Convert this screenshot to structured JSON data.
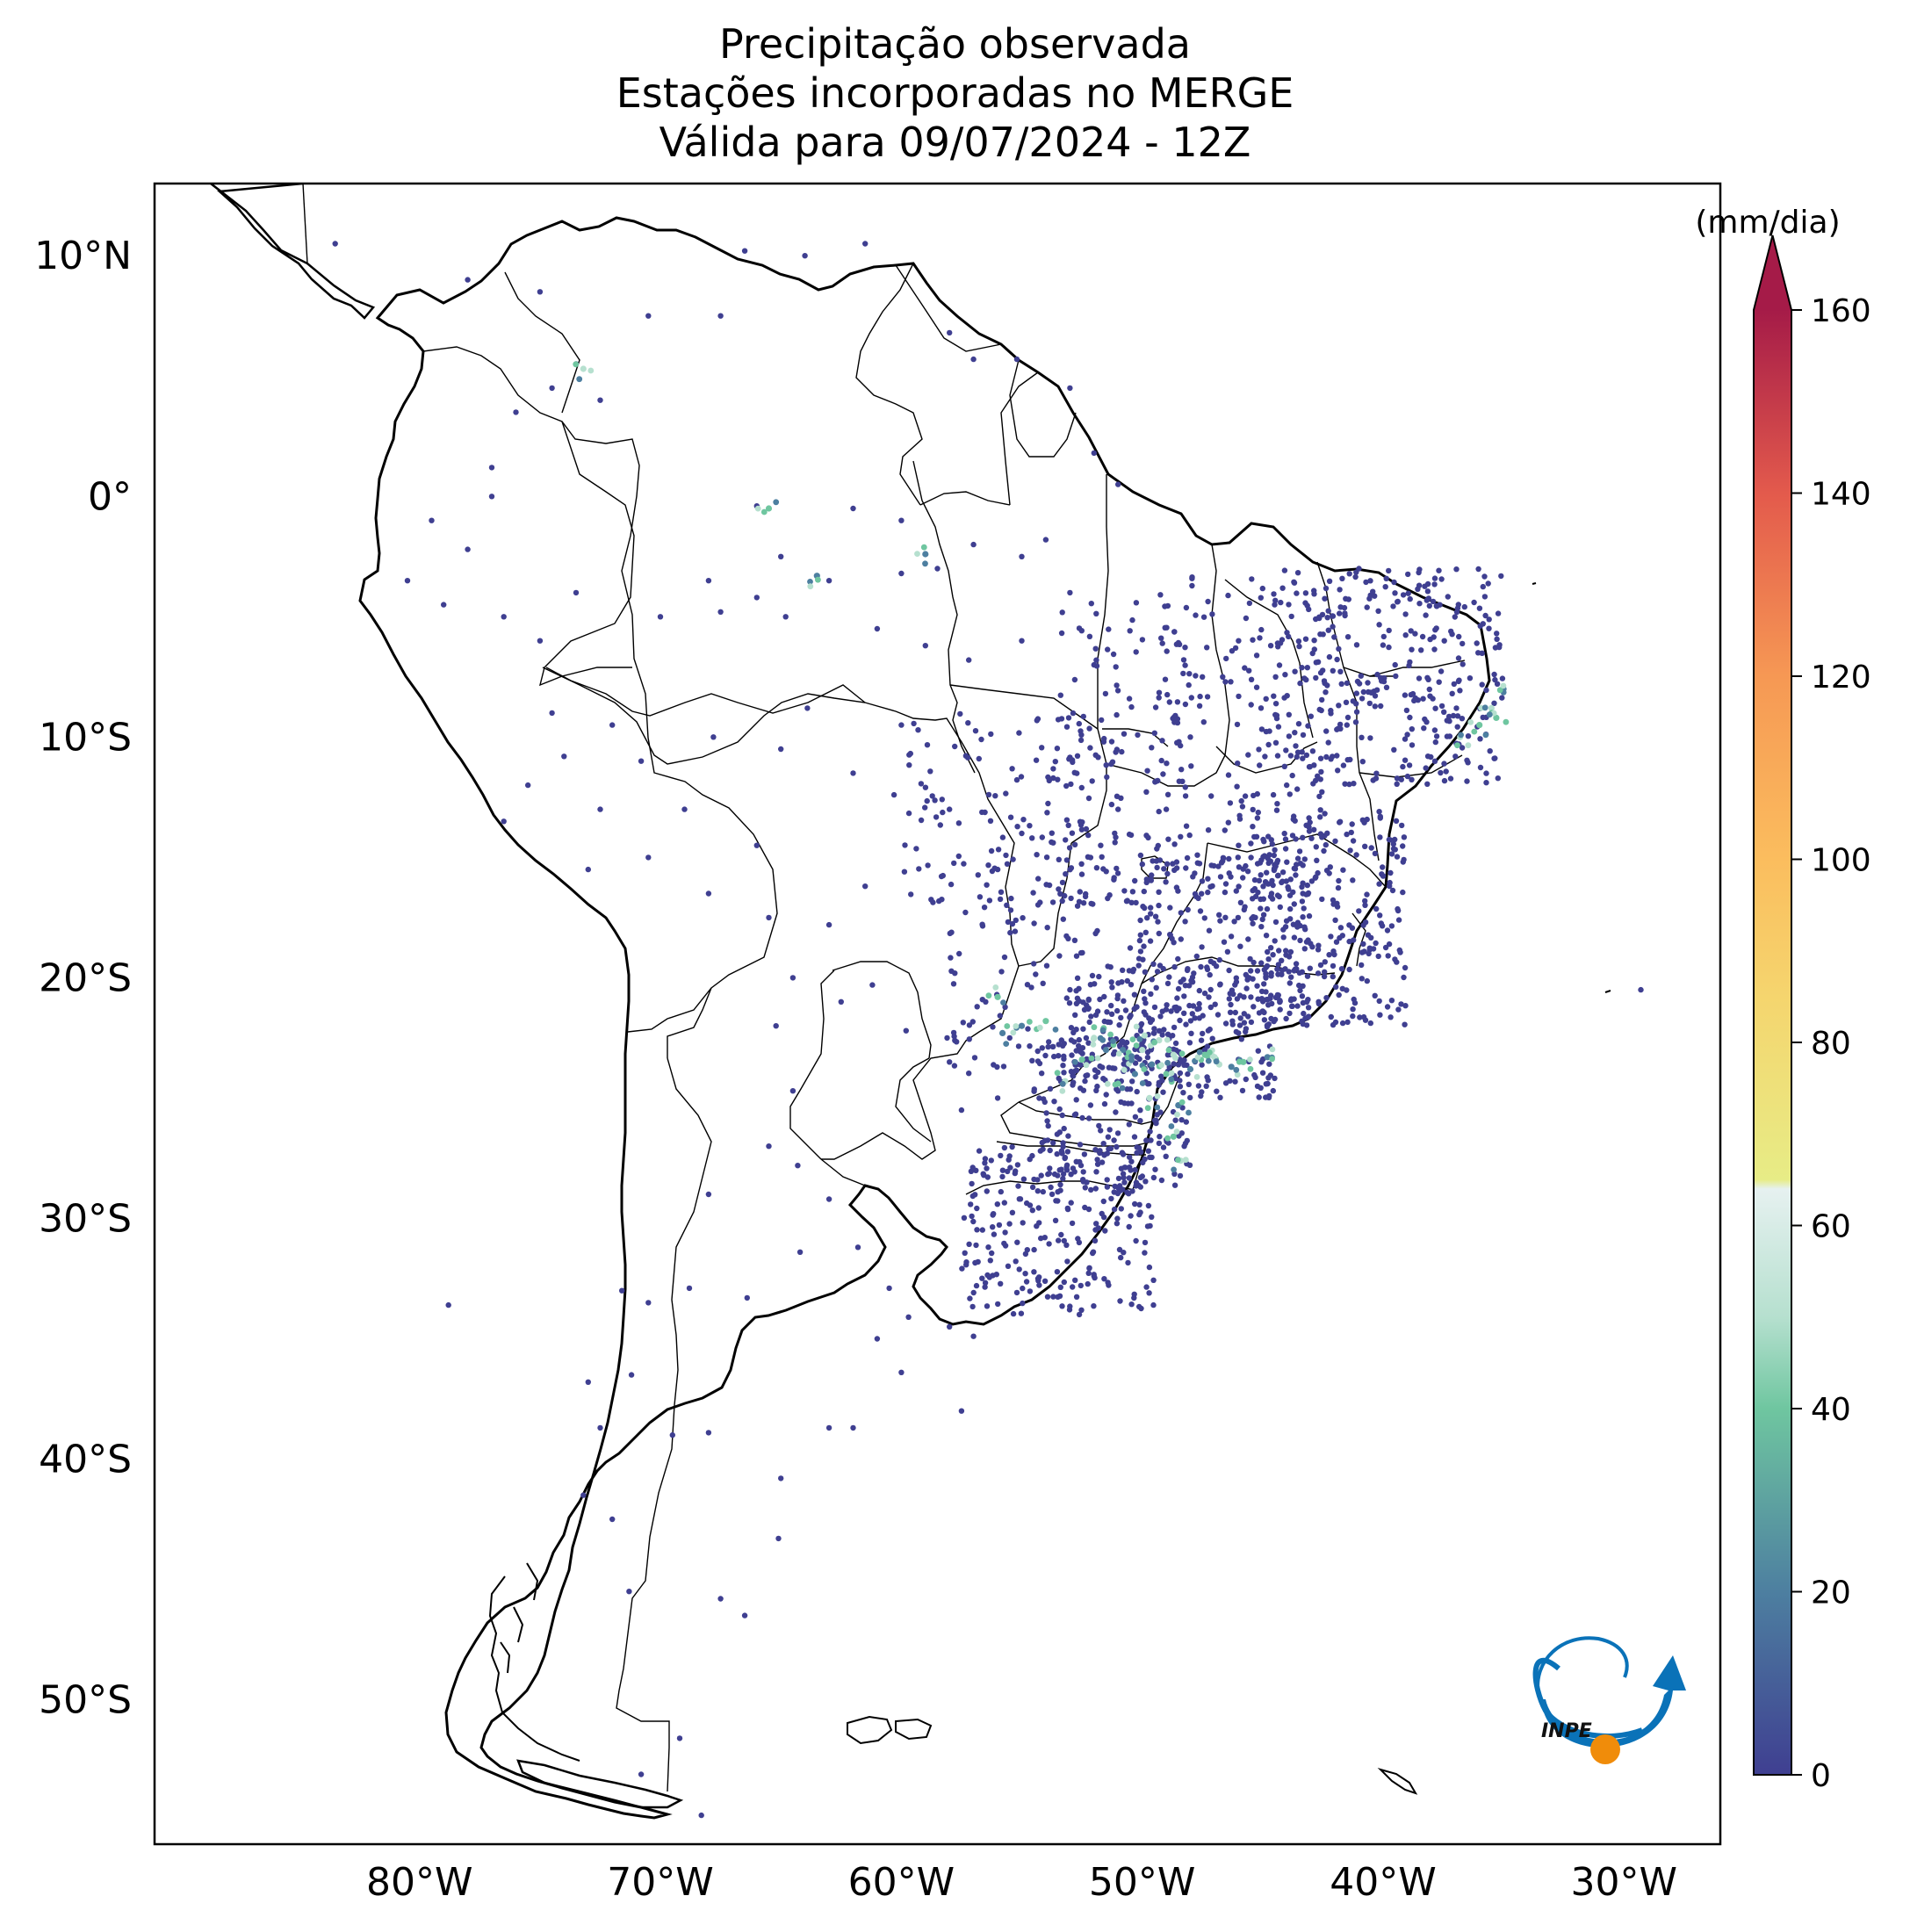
{
  "title": {
    "line1": "Precipitação observada",
    "line2": "Estações incorporadas no MERGE",
    "line3": "Válida para 09/07/2024 - 12Z"
  },
  "map": {
    "extent": {
      "lon_min": -91,
      "lon_max": -26,
      "lat_min": -56,
      "lat_max": 13
    },
    "lat_labels": [
      {
        "lat": 10,
        "text": "10°N"
      },
      {
        "lat": 0,
        "text": "0°"
      },
      {
        "lat": -10,
        "text": "10°S"
      },
      {
        "lat": -20,
        "text": "20°S"
      },
      {
        "lat": -30,
        "text": "30°S"
      },
      {
        "lat": -40,
        "text": "40°S"
      },
      {
        "lat": -50,
        "text": "50°S"
      }
    ],
    "lon_labels": [
      {
        "lon": -80,
        "text": "80°W"
      },
      {
        "lon": -70,
        "text": "70°W"
      },
      {
        "lon": -60,
        "text": "60°W"
      },
      {
        "lon": -50,
        "text": "50°W"
      },
      {
        "lon": -40,
        "text": "40°W"
      },
      {
        "lon": -30,
        "text": "30°W"
      }
    ]
  },
  "colorbar": {
    "unit": "(mm/dia)",
    "min": 0,
    "max": 160,
    "ticks": [
      "0",
      "20",
      "40",
      "60",
      "80",
      "100",
      "120",
      "140",
      "160"
    ],
    "colors": [
      {
        "v": 0,
        "c": "#3f3f91"
      },
      {
        "v": 20,
        "c": "#4d7fa0"
      },
      {
        "v": 40,
        "c": "#6fc6a0"
      },
      {
        "v": 50,
        "c": "#b6e0cf"
      },
      {
        "v": 64,
        "c": "#e6f1f0"
      },
      {
        "v": 65,
        "c": "#e7ec86"
      },
      {
        "v": 85,
        "c": "#f5d56e"
      },
      {
        "v": 100,
        "c": "#fbbd5e"
      },
      {
        "v": 120,
        "c": "#f69854"
      },
      {
        "v": 140,
        "c": "#e35a4c"
      },
      {
        "v": 160,
        "c": "#a51b48"
      }
    ]
  },
  "logo": {
    "text": "INPE"
  },
  "chart_data": {
    "type": "scatter",
    "stations_sparse": [
      [
        -83.5,
        10.5
      ],
      [
        -78,
        9
      ],
      [
        -75,
        8.5
      ],
      [
        -73.5,
        5.5
      ],
      [
        -74.5,
        4.5
      ],
      [
        -72.5,
        4
      ],
      [
        -76,
        3.5
      ],
      [
        -70.5,
        7.5
      ],
      [
        -67.5,
        7.5
      ],
      [
        -66.5,
        10.2
      ],
      [
        -64,
        10
      ],
      [
        -61.5,
        10.5
      ],
      [
        -58,
        6.8
      ],
      [
        -57,
        5.7
      ],
      [
        -55.2,
        5.7
      ],
      [
        -53,
        4.5
      ],
      [
        -52,
        1.8
      ],
      [
        -51,
        0.5
      ],
      [
        -77,
        1.2
      ],
      [
        -79.5,
        -1
      ],
      [
        -78,
        -2.2
      ],
      [
        -77,
        0
      ],
      [
        -80.5,
        -3.5
      ],
      [
        -79,
        -4.5
      ],
      [
        -76.5,
        -5
      ],
      [
        -75,
        -6
      ],
      [
        -73.5,
        -4
      ],
      [
        -70,
        -5
      ],
      [
        -68,
        -3.5
      ],
      [
        -65,
        -2.5
      ],
      [
        -63,
        -3.5
      ],
      [
        -60,
        -3.2
      ],
      [
        -58.5,
        -3
      ],
      [
        -57,
        -2
      ],
      [
        -55,
        -2.5
      ],
      [
        -54,
        -1.8
      ],
      [
        -53,
        -4
      ],
      [
        -60,
        -1
      ],
      [
        -62,
        -0.5
      ],
      [
        -66,
        -0.4
      ],
      [
        -67.5,
        -4.8
      ],
      [
        -66,
        -4.2
      ],
      [
        -64.8,
        -5
      ],
      [
        -61,
        -5.5
      ],
      [
        -59,
        -6.2
      ],
      [
        -57.2,
        -6.8
      ],
      [
        -55,
        -6
      ],
      [
        -52,
        -7
      ],
      [
        -74.5,
        -9
      ],
      [
        -75.5,
        -12
      ],
      [
        -76.5,
        -13.5
      ],
      [
        -72.5,
        -13
      ],
      [
        -73,
        -15.5
      ],
      [
        -70.5,
        -15
      ],
      [
        -68,
        -16.5
      ],
      [
        -66,
        -14.5
      ],
      [
        -65.5,
        -17.5
      ],
      [
        -63,
        -17.8
      ],
      [
        -61.5,
        -16.2
      ],
      [
        -64.5,
        -20
      ],
      [
        -65.2,
        -22
      ],
      [
        -62.5,
        -21
      ],
      [
        -59.8,
        -22.2
      ],
      [
        -58,
        -23.5
      ],
      [
        -56,
        -25
      ],
      [
        -57.5,
        -25.5
      ],
      [
        -64.5,
        -24.7
      ],
      [
        -65.5,
        -27
      ],
      [
        -68,
        -29
      ],
      [
        -64.3,
        -27.8
      ],
      [
        -63,
        -29.2
      ],
      [
        -61.8,
        -31.2
      ],
      [
        -60.5,
        -32.9
      ],
      [
        -64.2,
        -31.4
      ],
      [
        -66.4,
        -33.3
      ],
      [
        -68.8,
        -32.9
      ],
      [
        -70.5,
        -33.5
      ],
      [
        -71.6,
        -33
      ],
      [
        -71.2,
        -36.5
      ],
      [
        -73,
        -36.8
      ],
      [
        -72.5,
        -38.7
      ],
      [
        -73.2,
        -41.5
      ],
      [
        -72,
        -42.5
      ],
      [
        -71.3,
        -45.5
      ],
      [
        -69.5,
        -39
      ],
      [
        -68,
        -38.9
      ],
      [
        -65,
        -40.8
      ],
      [
        -63,
        -38.7
      ],
      [
        -62,
        -38.7
      ],
      [
        -57.5,
        -38
      ],
      [
        -60,
        -36.4
      ],
      [
        -58,
        -34.5
      ],
      [
        -59.7,
        -34.1
      ],
      [
        -61,
        -35
      ],
      [
        -57,
        -34.9
      ],
      [
        -67.5,
        -45.8
      ],
      [
        -65.1,
        -43.3
      ],
      [
        -66.5,
        -46.5
      ],
      [
        -69.2,
        -51.6
      ],
      [
        -70.8,
        -53.1
      ],
      [
        -68.3,
        -54.8
      ],
      [
        -78.8,
        -33.6
      ],
      [
        -29.3,
        -20.5
      ],
      [
        -51,
        -13
      ],
      [
        -55,
        -14
      ],
      [
        -56,
        -15.5
      ],
      [
        -58,
        -13
      ],
      [
        -60.3,
        -12.4
      ],
      [
        -63.9,
        -8.8
      ],
      [
        -67.8,
        -10
      ],
      [
        -70.8,
        -11
      ],
      [
        -62,
        -11.5
      ],
      [
        -60,
        -9.5
      ],
      [
        -65,
        -10.5
      ],
      [
        -69,
        -13
      ],
      [
        -72,
        -9.5
      ],
      [
        -74,
        -10.8
      ],
      [
        -61.2,
        -20.3
      ],
      [
        -58.1,
        -22.5
      ],
      [
        -56.5,
        -21
      ],
      [
        -53,
        -20.5
      ],
      [
        -54.6,
        -20.4
      ],
      [
        -57.6,
        -19
      ],
      [
        -55.5,
        -22.5
      ],
      [
        -52.8,
        -25.7
      ],
      [
        -49,
        -13
      ],
      [
        -48,
        -10
      ],
      [
        -47.5,
        -7.5
      ],
      [
        -46,
        -6
      ],
      [
        -44.5,
        -4.5
      ],
      [
        -42.8,
        -5.1
      ],
      [
        -41,
        -3
      ],
      [
        -38.5,
        -3.7
      ],
      [
        -39.5,
        -7
      ],
      [
        -41.5,
        -9.5
      ],
      [
        -44,
        -12
      ],
      [
        -46,
        -14.5
      ],
      [
        -47.9,
        -15.8
      ]
    ],
    "stations_dense_regions": [
      {
        "lon": [
          -44.5,
          -35
        ],
        "lat": [
          -12,
          -3
        ],
        "count": 330
      },
      {
        "lon": [
          -49.5,
          -42
        ],
        "lat": [
          -16,
          -3
        ],
        "count": 170
      },
      {
        "lon": [
          -53.5,
          -48
        ],
        "lat": [
          -15,
          -4
        ],
        "count": 90
      },
      {
        "lon": [
          -60,
          -51
        ],
        "lat": [
          -17,
          -9
        ],
        "count": 140
      },
      {
        "lon": [
          -45.5,
          -39
        ],
        "lat": [
          -22,
          -13
        ],
        "count": 280
      },
      {
        "lon": [
          -50.5,
          -43
        ],
        "lat": [
          -22,
          -15
        ],
        "count": 220
      },
      {
        "lon": [
          -53,
          -44.5
        ],
        "lat": [
          -25,
          -19.5
        ],
        "count": 230
      },
      {
        "lon": [
          -54.5,
          -48
        ],
        "lat": [
          -29,
          -22.5
        ],
        "count": 250
      },
      {
        "lon": [
          -57.5,
          -49.5
        ],
        "lat": [
          -34,
          -27
        ],
        "count": 230
      },
      {
        "lon": [
          -58,
          -50
        ],
        "lat": [
          -24,
          -15
        ],
        "count": 120
      }
    ],
    "high_precip_stations": [
      [
        -55,
        -22
      ],
      [
        -54,
        -21.8
      ],
      [
        -52,
        -22.5
      ],
      [
        -51.5,
        -23
      ],
      [
        -50.6,
        -23.3
      ],
      [
        -50,
        -23
      ],
      [
        -49.6,
        -23.6
      ],
      [
        -49,
        -24
      ],
      [
        -48.7,
        -23.2
      ],
      [
        -48,
        -23.8
      ],
      [
        -47.4,
        -23.2
      ],
      [
        -46.8,
        -23.6
      ],
      [
        -46.3,
        -23.7
      ],
      [
        -45.8,
        -23.5
      ],
      [
        -49.3,
        -22.6
      ],
      [
        -50.3,
        -24
      ],
      [
        -51,
        -24.4
      ],
      [
        -49.7,
        -25
      ],
      [
        -48.5,
        -25.3
      ],
      [
        -48.7,
        -26.6
      ],
      [
        -48.4,
        -27.6
      ],
      [
        -50.8,
        -23
      ],
      [
        -52.5,
        -23.4
      ],
      [
        -53.2,
        -24.3
      ],
      [
        -55.8,
        -22.3
      ],
      [
        -36,
        -9.5
      ],
      [
        -35.5,
        -8.8
      ],
      [
        -35,
        -8
      ],
      [
        -35.3,
        -9.2
      ],
      [
        -36.8,
        -10
      ],
      [
        -63.5,
        -3.3
      ],
      [
        -65.5,
        -0.5
      ],
      [
        -73.2,
        5.3
      ],
      [
        -59,
        -2.4
      ],
      [
        -56,
        -20.8
      ],
      [
        -47,
        -23.3
      ],
      [
        -44.8,
        -23.3
      ],
      [
        -51.6,
        -22.1
      ],
      [
        -49.9,
        -22.4
      ]
    ],
    "value_range": [
      0,
      160
    ],
    "unit": "(mm/dia)"
  }
}
